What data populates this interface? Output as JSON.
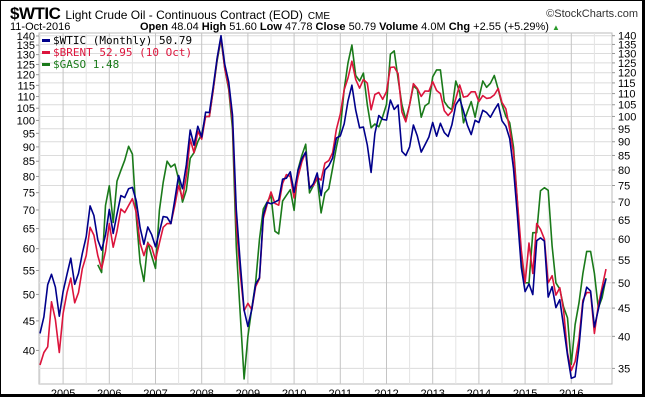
{
  "header": {
    "symbol": "$WTIC",
    "description": "Light Crude Oil - Continuous Contract (EOD)",
    "exchange": "CME",
    "copyright": "©StockCharts.com",
    "date": "11-Oct-2016",
    "open_label": "Open",
    "open": "48.04",
    "high_label": "High",
    "high": "51.60",
    "low_label": "Low",
    "low": "47.78",
    "close_label": "Close",
    "close": "50.79",
    "volume_label": "Volume",
    "volume": "4.0M",
    "chg_label": "Chg",
    "chg": "+2.55 (+5.29%)",
    "up_color": "#2a9a2a"
  },
  "chart_data": {
    "type": "line",
    "scale": "log",
    "x_start": "2004-07",
    "interval": "monthly",
    "x_ticks": [
      "2005",
      "2006",
      "2007",
      "2008",
      "2009",
      "2010",
      "2011",
      "2012",
      "2013",
      "2014",
      "2015",
      "2016"
    ],
    "y_ticks_right": [
      35,
      40,
      45,
      50,
      55,
      60,
      65,
      70,
      75,
      80,
      85,
      90,
      95,
      100,
      105,
      110,
      115,
      120,
      125,
      130,
      135,
      140
    ],
    "y_ticks_left": [
      40,
      45,
      50,
      55,
      60,
      65,
      70,
      75,
      80,
      85,
      90,
      95,
      100,
      105,
      110,
      115,
      120,
      125,
      130,
      135,
      140
    ],
    "ylim": [
      33.5,
      142
    ],
    "legend_position": "top-left",
    "series": [
      {
        "name": "$WTIC (Monthly) 50.79",
        "color": "#00008b",
        "start": 0,
        "values": [
          40.5,
          43.4,
          49.6,
          51.8,
          49.1,
          43.5,
          48.2,
          51.8,
          55.4,
          49.7,
          52.0,
          56.5,
          60.6,
          68.9,
          66.2,
          59.8,
          57.3,
          61.0,
          67.9,
          61.4,
          66.6,
          71.9,
          71.3,
          74.0,
          74.4,
          70.3,
          62.9,
          58.7,
          63.1,
          61.1,
          58.1,
          61.8,
          65.9,
          65.7,
          64.0,
          70.7,
          78.2,
          74.0,
          81.7,
          94.5,
          88.7,
          96.0,
          91.8,
          101.8,
          101.6,
          113.5,
          127.4,
          140.0,
          124.1,
          115.5,
          100.6,
          67.8,
          54.4,
          44.6,
          41.7,
          44.8,
          49.7,
          51.1,
          66.3,
          69.9,
          69.5,
          70.0,
          70.6,
          77.0,
          77.3,
          79.4,
          72.9,
          79.7,
          83.8,
          86.2,
          74.0,
          75.6,
          79.0,
          71.9,
          80.0,
          81.4,
          84.1,
          91.4,
          92.2,
          97.0,
          106.7,
          113.9,
          102.7,
          95.4,
          95.7,
          88.8,
          79.2,
          93.2,
          100.4,
          98.8,
          98.5,
          107.1,
          103.0,
          104.9,
          86.5,
          85.0,
          88.1,
          96.5,
          92.2,
          86.2,
          88.9,
          91.8,
          97.5,
          92.1,
          97.2,
          93.5,
          92.0,
          96.6,
          105.0,
          107.7,
          102.3,
          96.4,
          92.7,
          98.4,
          97.5,
          102.6,
          101.6,
          99.7,
          102.7,
          105.4,
          98.2,
          96.0,
          91.2,
          80.5,
          66.2,
          53.3,
          48.2,
          49.8,
          47.6,
          59.6,
          60.3,
          59.5,
          47.1,
          49.2,
          45.1,
          46.6,
          41.7,
          37.0,
          33.6,
          33.8,
          38.3,
          45.9,
          49.1,
          48.3,
          41.6,
          44.7,
          48.2,
          50.79
        ]
      },
      {
        "name": "$BRENT 52.95 (10 Oct)",
        "color": "#dc143c",
        "start": 0,
        "values": [
          35.5,
          37.4,
          38.3,
          46.2,
          42.9,
          37.4,
          44,
          48,
          51,
          46,
          48,
          53,
          56,
          63,
          61,
          56,
          53,
          57,
          64,
          58,
          62,
          68,
          67,
          69,
          71,
          67,
          59,
          56,
          59,
          58,
          55,
          59,
          63,
          64,
          64,
          69,
          75,
          71,
          78,
          91,
          86,
          94,
          91,
          100,
          100,
          112,
          127,
          139,
          122,
          113,
          98,
          64,
          52,
          44.5,
          45.9,
          44.7,
          49.2,
          50.9,
          65.4,
          69.3,
          73.0,
          69.6,
          69.1,
          75.7,
          78.5,
          77.9,
          71.2,
          77.6,
          82.7,
          86.2,
          74.6,
          75.0,
          77.5,
          76.7,
          82.3,
          83.2,
          85.9,
          94.8,
          101.0,
          111.8,
          117.4,
          125.9,
          116.7,
          112.5,
          116.7,
          114.9,
          102.8,
          109.6,
          110.5,
          107.4,
          110.9,
          122.7,
          122.9,
          119.5,
          101.9,
          97.8,
          104.9,
          114.6,
          112.4,
          108.7,
          111.2,
          111.1,
          115.6,
          111.4,
          110.0,
          102.4,
          100.4,
          102.2,
          107.7,
          114.0,
          108.4,
          108.8,
          110.8,
          110.8,
          106.4,
          109.1,
          107.8,
          108.1,
          109.4,
          112.4,
          106.0,
          103.2,
          94.7,
          85.9,
          70.2,
          57.3,
          50.0,
          59.0,
          52.0,
          64.0,
          62.5,
          60.0,
          50.0,
          51.5,
          47.5,
          49.0,
          44.6,
          37.3,
          34.7,
          36.0,
          39.6,
          46.5,
          48.0,
          48.0,
          40.5,
          45.5,
          49.1,
          52.95
        ]
      },
      {
        "name": "$GASO 1.48",
        "color": "#1a7a1a",
        "start": 15,
        "values": [
          53.9,
          52.2,
          69.0,
          74.9,
          64.3,
          76.4,
          79.9,
          83.3,
          88.3,
          85.5,
          65.8,
          54.4,
          50.3,
          59.2,
          55.9,
          53.1,
          67.6,
          76,
          83,
          81,
          82,
          77,
          70,
          73.5,
          84,
          86,
          90,
          93,
          100,
          100,
          112,
          126,
          138,
          122,
          112,
          95,
          58,
          44,
          33.5,
          40,
          45,
          50,
          60,
          68,
          70,
          71.9,
          62,
          61.3,
          70.3,
          72,
          73.7,
          67.6,
          80,
          85,
          89.1,
          72.7,
          75,
          77.3,
          66.9,
          72.7,
          74,
          80.6,
          88,
          94.9,
          112,
          125,
          134.7,
          118.6,
          115.9,
          119.8,
          105,
          95.4,
          96.9,
          95.8,
          100,
          105.1,
          129.6,
          131.4,
          116.9,
          105,
          98.8,
          105,
          113.6,
          112,
          99.7,
          104.5,
          105.7,
          117.9,
          121.4,
          121.4,
          106.4,
          104,
          102.8,
          115.9,
          110.7,
          97.4,
          102,
          106.4,
          99.7,
          108,
          115.9,
          112.9,
          114.8,
          118.6,
          112,
          105.1,
          100,
          97.4,
          88,
          70,
          55,
          50,
          50,
          61.6,
          61.6,
          73.4,
          74.3,
          73.5,
          58.3,
          50,
          48.7,
          45.2,
          43.2,
          35.6,
          42,
          46,
          52,
          57,
          57,
          52,
          45,
          47,
          51
        ]
      }
    ]
  }
}
